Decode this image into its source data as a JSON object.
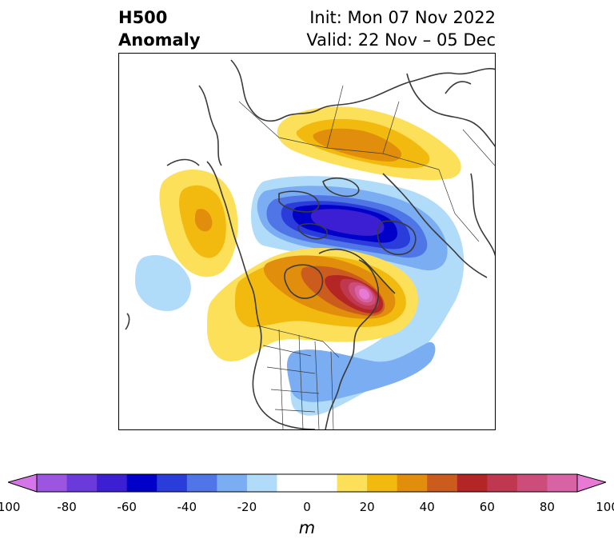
{
  "header": {
    "variable": "H500",
    "product": "Anomaly",
    "init": "Init: Mon 07 Nov 2022",
    "valid": "Valid: 22 Nov – 05 Dec"
  },
  "colorbar": {
    "unit_label": "m",
    "min": -100,
    "max": 100,
    "step": 10,
    "extend": "both",
    "tick_values": [
      "-100",
      "-80",
      "-60",
      "-40",
      "-20",
      "0",
      "20",
      "40",
      "60",
      "80",
      "100"
    ],
    "colors": [
      "#d475e8",
      "#9c55e0",
      "#6a3adb",
      "#3c1fd3",
      "#0000c8",
      "#2a3ddb",
      "#4f75e6",
      "#7aadf1",
      "#b0dcf9",
      "#ffffff",
      "#ffffff",
      "#fde05a",
      "#f2b90f",
      "#e08e0b",
      "#cb5c1e",
      "#b42525",
      "#c0384f",
      "#cc4d79",
      "#d863a4",
      "#e87ad6"
    ]
  },
  "palette": {
    "land_outline": "#3a3a3a",
    "frame": "#000000"
  }
}
